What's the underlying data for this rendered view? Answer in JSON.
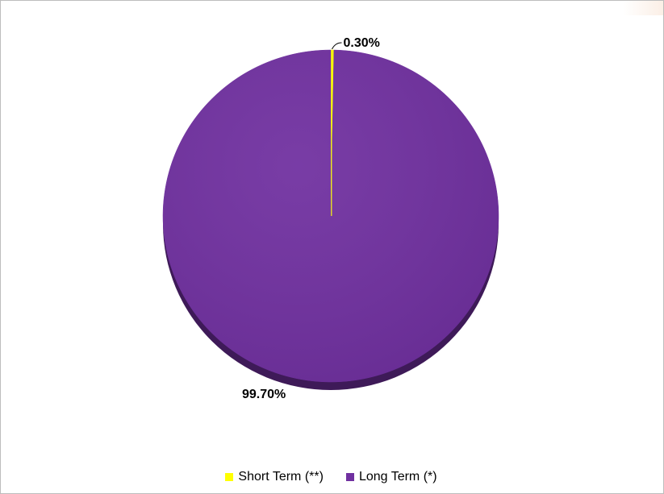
{
  "chart_data": {
    "type": "pie",
    "title": "",
    "slices": [
      {
        "label": "Short Term (**)",
        "value": 0.3,
        "value_label": "0.30%",
        "color": "#FFFF00"
      },
      {
        "label": "Long Term (*)",
        "value": 99.7,
        "value_label": "99.70%",
        "color": "#7030A0"
      }
    ],
    "legend_position": "bottom",
    "style": "3d-shaded"
  }
}
